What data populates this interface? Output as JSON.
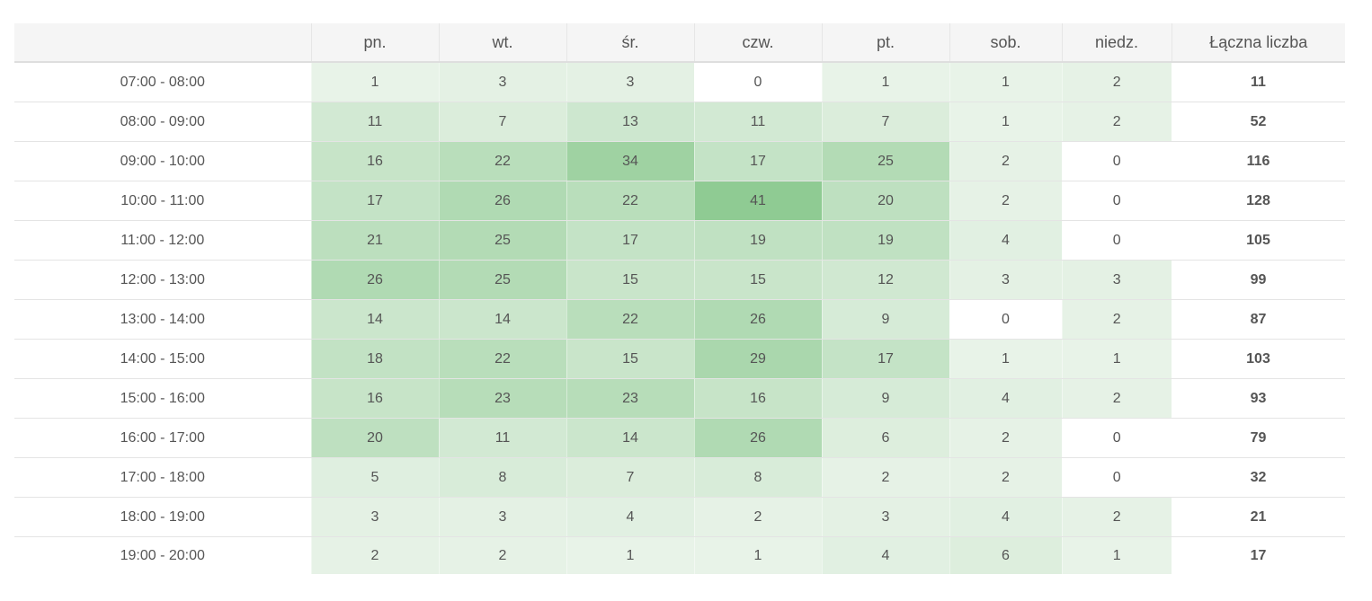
{
  "chart_data": {
    "type": "heatmap",
    "columns": [
      "pn.",
      "wt.",
      "śr.",
      "czw.",
      "pt.",
      "sob.",
      "niedz."
    ],
    "total_label": "Łączna liczba",
    "rows": [
      {
        "label": "07:00 - 08:00",
        "values": [
          1,
          3,
          3,
          0,
          1,
          1,
          2
        ],
        "total": 11
      },
      {
        "label": "08:00 - 09:00",
        "values": [
          11,
          7,
          13,
          11,
          7,
          1,
          2
        ],
        "total": 52
      },
      {
        "label": "09:00 - 10:00",
        "values": [
          16,
          22,
          34,
          17,
          25,
          2,
          0
        ],
        "total": 116
      },
      {
        "label": "10:00 - 11:00",
        "values": [
          17,
          26,
          22,
          41,
          20,
          2,
          0
        ],
        "total": 128
      },
      {
        "label": "11:00 - 12:00",
        "values": [
          21,
          25,
          17,
          19,
          19,
          4,
          0
        ],
        "total": 105
      },
      {
        "label": "12:00 - 13:00",
        "values": [
          26,
          25,
          15,
          15,
          12,
          3,
          3
        ],
        "total": 99
      },
      {
        "label": "13:00 - 14:00",
        "values": [
          14,
          14,
          22,
          26,
          9,
          0,
          2
        ],
        "total": 87
      },
      {
        "label": "14:00 - 15:00",
        "values": [
          18,
          22,
          15,
          29,
          17,
          1,
          1
        ],
        "total": 103
      },
      {
        "label": "15:00 - 16:00",
        "values": [
          16,
          23,
          23,
          16,
          9,
          4,
          2
        ],
        "total": 93
      },
      {
        "label": "16:00 - 17:00",
        "values": [
          20,
          11,
          14,
          26,
          6,
          2,
          0
        ],
        "total": 79
      },
      {
        "label": "17:00 - 18:00",
        "values": [
          5,
          8,
          7,
          8,
          2,
          2,
          0
        ],
        "total": 32
      },
      {
        "label": "18:00 - 19:00",
        "values": [
          3,
          3,
          4,
          2,
          3,
          4,
          2
        ],
        "total": 21
      },
      {
        "label": "19:00 - 20:00",
        "values": [
          2,
          2,
          1,
          1,
          4,
          6,
          1
        ],
        "total": 17
      }
    ],
    "color_low": "#e8f3e8",
    "color_high": "#8fcb93",
    "color_zero": "#ffffff"
  }
}
